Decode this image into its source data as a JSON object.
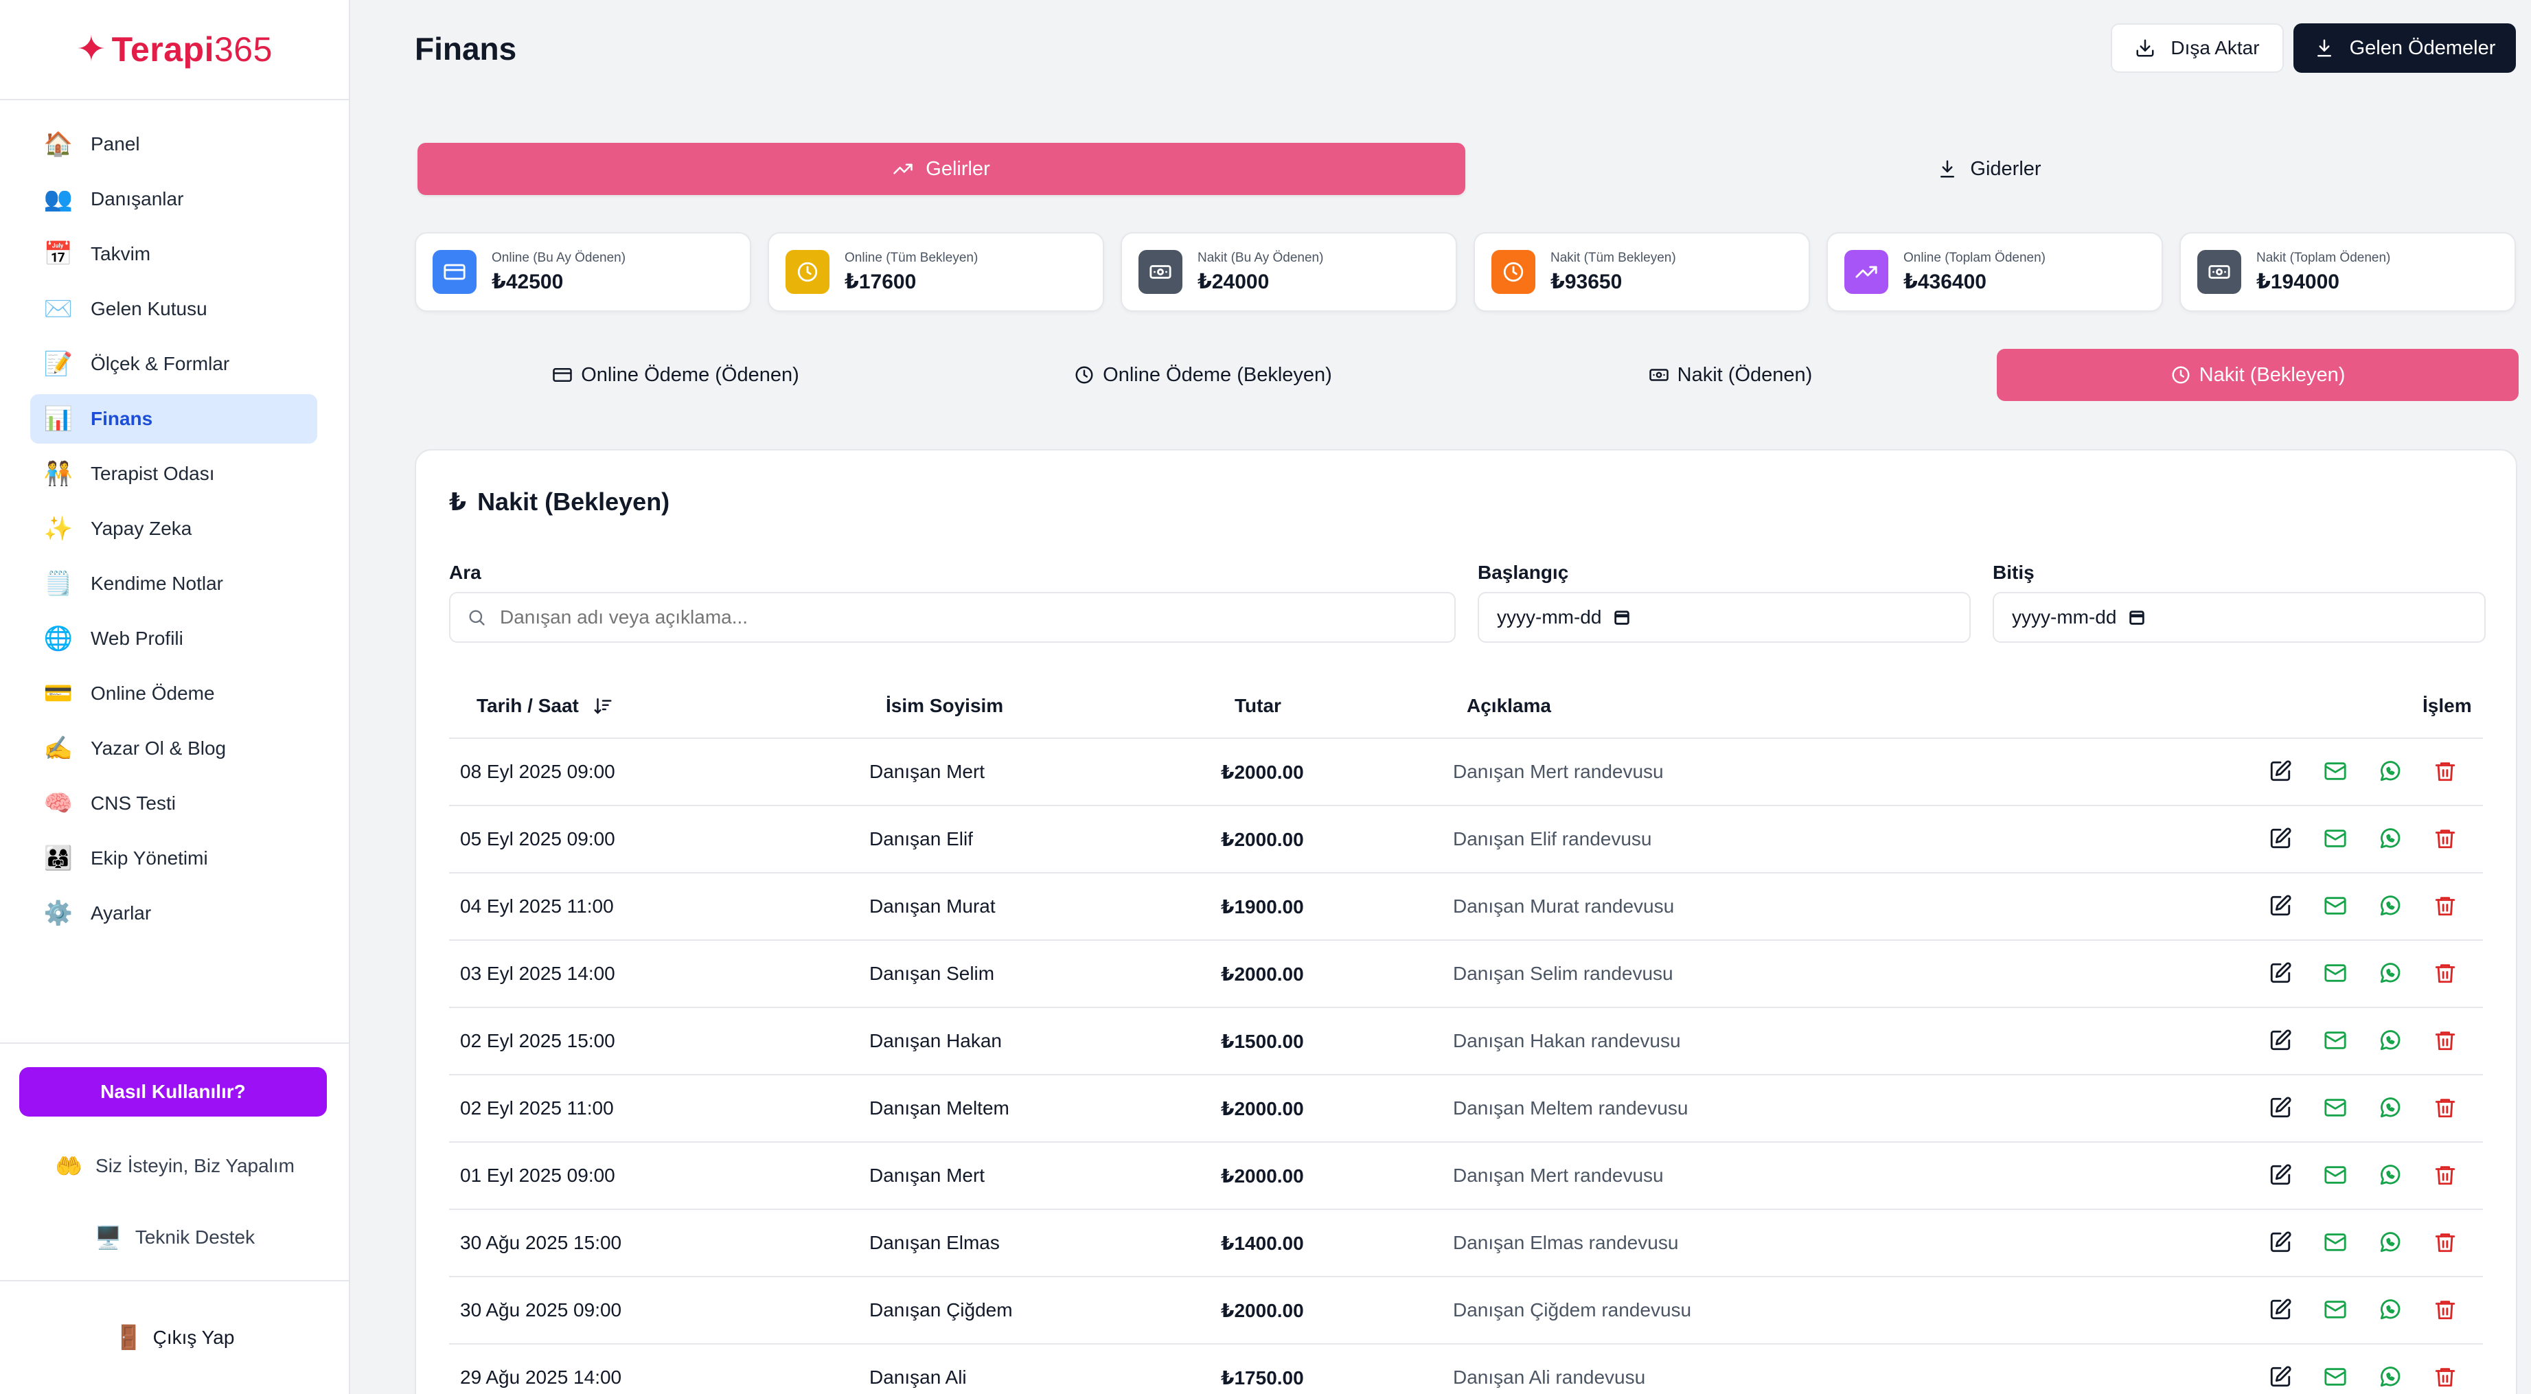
{
  "brand": {
    "name": "Terapi",
    "num": "365"
  },
  "sidebar": {
    "items": [
      {
        "label": "Panel",
        "icon": "🏠",
        "icon_name": "home-icon"
      },
      {
        "label": "Danışanlar",
        "icon": "👥",
        "icon_name": "clients-icon"
      },
      {
        "label": "Takvim",
        "icon": "📅",
        "icon_name": "calendar-icon"
      },
      {
        "label": "Gelen Kutusu",
        "icon": "✉️",
        "icon_name": "inbox-icon"
      },
      {
        "label": "Ölçek & Formlar",
        "icon": "📝",
        "icon_name": "forms-icon"
      },
      {
        "label": "Finans",
        "icon": "📊",
        "icon_name": "finance-icon",
        "active": true
      },
      {
        "label": "Terapist Odası",
        "icon": "🧑‍🤝‍🧑",
        "icon_name": "therapist-room-icon"
      },
      {
        "label": "Yapay Zeka",
        "icon": "✨",
        "icon_name": "ai-sparkle-icon"
      },
      {
        "label": "Kendime Notlar",
        "icon": "🗒️",
        "icon_name": "notes-icon"
      },
      {
        "label": "Web Profili",
        "icon": "🌐",
        "icon_name": "web-profile-icon"
      },
      {
        "label": "Online Ödeme",
        "icon": "💳",
        "icon_name": "online-payment-icon"
      },
      {
        "label": "Yazar Ol & Blog",
        "icon": "✍️",
        "icon_name": "blog-icon"
      },
      {
        "label": "CNS Testi",
        "icon": "🧠",
        "icon_name": "brain-icon"
      },
      {
        "label": "Ekip Yönetimi",
        "icon": "👨‍👩‍👧",
        "icon_name": "team-icon"
      },
      {
        "label": "Ayarlar",
        "icon": "⚙️",
        "icon_name": "gear-icon"
      }
    ],
    "howto_label": "Nasıl Kullanılır?",
    "custom_label": "Siz İsteyin, Biz Yapalım",
    "support_label": "Teknik Destek",
    "logout_label": "Çıkış Yap"
  },
  "header": {
    "title": "Finans",
    "export_label": "Dışa Aktar",
    "incoming_label": "Gelen Ödemeler"
  },
  "top_tabs": {
    "income": "Gelirler",
    "expense": "Giderler"
  },
  "cards": [
    {
      "label": "Online (Bu Ay Ödenen)",
      "value": "₺42500",
      "color": "#3b82f6",
      "icon_name": "credit-card-icon"
    },
    {
      "label": "Online (Tüm Bekleyen)",
      "value": "₺17600",
      "color": "#eab308",
      "icon_name": "clock-icon"
    },
    {
      "label": "Nakit (Bu Ay Ödenen)",
      "value": "₺24000",
      "color": "#4b5563",
      "icon_name": "banknote-icon"
    },
    {
      "label": "Nakit (Tüm Bekleyen)",
      "value": "₺93650",
      "color": "#f97316",
      "icon_name": "clock-icon"
    },
    {
      "label": "Online (Toplam Ödenen)",
      "value": "₺436400",
      "color": "#a855f7",
      "icon_name": "trending-up-icon"
    },
    {
      "label": "Nakit (Toplam Ödenen)",
      "value": "₺194000",
      "color": "#4b5563",
      "icon_name": "banknote-icon"
    }
  ],
  "sub_tabs": [
    {
      "label": "Online Ödeme (Ödenen)",
      "icon_name": "credit-card-icon"
    },
    {
      "label": "Online Ödeme (Bekleyen)",
      "icon_name": "clock-icon"
    },
    {
      "label": "Nakit (Ödenen)",
      "icon_name": "banknote-icon"
    },
    {
      "label": "Nakit (Bekleyen)",
      "icon_name": "clock-icon",
      "active": true
    }
  ],
  "panel": {
    "title": "Nakit (Bekleyen)",
    "search_label": "Ara",
    "search_placeholder": "Danışan adı veya açıklama...",
    "start_label": "Başlangıç",
    "end_label": "Bitiş",
    "date_placeholder": "yyyy-mm-dd"
  },
  "table": {
    "headers": {
      "date": "Tarih / Saat",
      "name": "İsim Soyisim",
      "amount": "Tutar",
      "desc": "Açıklama",
      "action": "İşlem"
    },
    "rows": [
      {
        "date": "08 Eyl 2025 09:00",
        "name": "Danışan Mert",
        "amount": "₺2000.00",
        "desc": "Danışan Mert randevusu"
      },
      {
        "date": "05 Eyl 2025 09:00",
        "name": "Danışan Elif",
        "amount": "₺2000.00",
        "desc": "Danışan Elif randevusu"
      },
      {
        "date": "04 Eyl 2025 11:00",
        "name": "Danışan Murat",
        "amount": "₺1900.00",
        "desc": "Danışan Murat randevusu"
      },
      {
        "date": "03 Eyl 2025 14:00",
        "name": "Danışan Selim",
        "amount": "₺2000.00",
        "desc": "Danışan Selim randevusu"
      },
      {
        "date": "02 Eyl 2025 15:00",
        "name": "Danışan Hakan",
        "amount": "₺1500.00",
        "desc": "Danışan Hakan randevusu"
      },
      {
        "date": "02 Eyl 2025 11:00",
        "name": "Danışan Meltem",
        "amount": "₺2000.00",
        "desc": "Danışan Meltem randevusu"
      },
      {
        "date": "01 Eyl 2025 09:00",
        "name": "Danışan Mert",
        "amount": "₺2000.00",
        "desc": "Danışan Mert randevusu"
      },
      {
        "date": "30 Ağu 2025 15:00",
        "name": "Danışan Elmas",
        "amount": "₺1400.00",
        "desc": "Danışan Elmas randevusu"
      },
      {
        "date": "30 Ağu 2025 09:00",
        "name": "Danışan Çiğdem",
        "amount": "₺2000.00",
        "desc": "Danışan Çiğdem randevusu"
      },
      {
        "date": "29 Ağu 2025 14:00",
        "name": "Danışan Ali",
        "amount": "₺1750.00",
        "desc": "Danışan Ali randevusu"
      }
    ]
  },
  "colors": {
    "accent_pink": "#e85a85",
    "brand_red": "#e11d48",
    "purple": "#9b10f5",
    "edit": "#111827",
    "mail": "#16a34a",
    "whatsapp": "#16a34a",
    "delete": "#dc2626"
  }
}
